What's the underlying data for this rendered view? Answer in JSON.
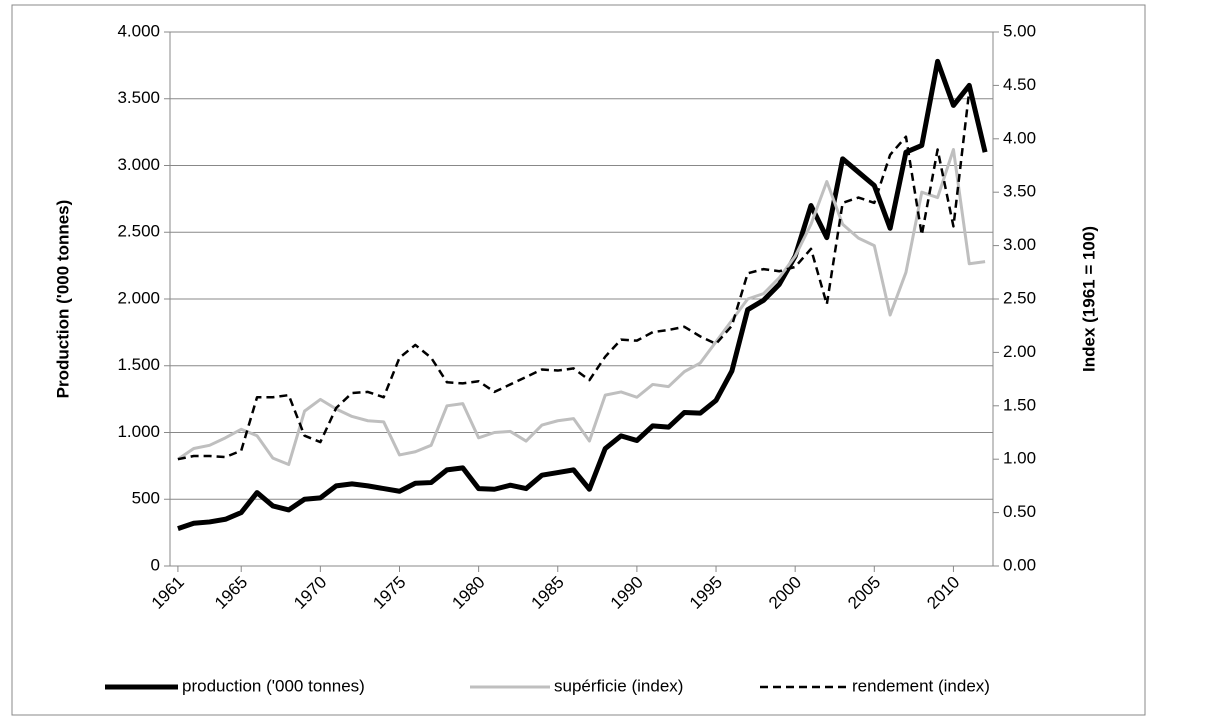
{
  "chart_data": {
    "type": "line",
    "ylabel": "Production ('000 tonnes)",
    "y2label": "Index (1961 = 100)",
    "x": [
      1961,
      1962,
      1963,
      1964,
      1965,
      1966,
      1967,
      1968,
      1969,
      1970,
      1971,
      1972,
      1973,
      1974,
      1975,
      1976,
      1977,
      1978,
      1979,
      1980,
      1981,
      1982,
      1983,
      1984,
      1985,
      1986,
      1987,
      1988,
      1989,
      1990,
      1991,
      1992,
      1993,
      1994,
      1995,
      1996,
      1997,
      1998,
      1999,
      2000,
      2001,
      2002,
      2003,
      2004,
      2005,
      2006,
      2007,
      2008,
      2009,
      2010,
      2011,
      2012
    ],
    "xlim": [
      1960.5,
      2012.5
    ],
    "xticks": [
      1961,
      1965,
      1970,
      1975,
      1980,
      1985,
      1990,
      1995,
      2000,
      2005,
      2010
    ],
    "ylim": [
      0,
      4000
    ],
    "yticks": [
      0,
      500,
      {
        "value": 1000,
        "label": "1.000"
      },
      {
        "value": 1500,
        "label": "1.500"
      },
      {
        "value": 2000,
        "label": "2.000"
      },
      {
        "value": 2500,
        "label": "2.500"
      },
      {
        "value": 3000,
        "label": "3.000"
      },
      {
        "value": 3500,
        "label": "3.500"
      },
      {
        "value": 4000,
        "label": "4.000"
      }
    ],
    "y2lim": [
      0,
      5
    ],
    "y2ticks": [
      {
        "value": 0,
        "label": "0.00"
      },
      {
        "value": 0.5,
        "label": "0.50"
      },
      {
        "value": 1,
        "label": "1.00"
      },
      {
        "value": 1.5,
        "label": "1.50"
      },
      {
        "value": 2,
        "label": "2.00"
      },
      {
        "value": 2.5,
        "label": "2.50"
      },
      {
        "value": 3,
        "label": "3.00"
      },
      {
        "value": 3.5,
        "label": "3.50"
      },
      {
        "value": 4,
        "label": "4.00"
      },
      {
        "value": 4.5,
        "label": "4.50"
      },
      {
        "value": 5,
        "label": "5.00"
      }
    ],
    "grid": true,
    "legend": "bottom",
    "series": [
      {
        "name": "production ('000 tonnes)",
        "color": "#000000",
        "style": "solid",
        "width": 5,
        "values": [
          280,
          320,
          330,
          350,
          400,
          550,
          450,
          420,
          500,
          510,
          600,
          615,
          600,
          580,
          560,
          620,
          625,
          720,
          735,
          580,
          575,
          605,
          580,
          680,
          700,
          720,
          575,
          880,
          975,
          940,
          1050,
          1040,
          1150,
          1145,
          1240,
          1460,
          1920,
          1990,
          2110,
          2320,
          2700,
          2460,
          3050,
          2950,
          2850,
          2530,
          3100,
          3150,
          3780,
          3450,
          3600,
          3100
        ]
      },
      {
        "name": "supérficie (index)",
        "color": "#bfbfbf",
        "style": "solid",
        "width": 3,
        "axis": "y2",
        "values": [
          1.0,
          1.1,
          1.13,
          1.2,
          1.28,
          1.22,
          1.01,
          0.95,
          1.45,
          1.56,
          1.47,
          1.4,
          1.36,
          1.35,
          1.04,
          1.07,
          1.13,
          1.5,
          1.52,
          1.2,
          1.25,
          1.26,
          1.17,
          1.32,
          1.36,
          1.38,
          1.17,
          1.6,
          1.63,
          1.58,
          1.7,
          1.68,
          1.82,
          1.9,
          2.1,
          2.3,
          2.5,
          2.55,
          2.7,
          2.9,
          3.2,
          3.6,
          3.2,
          3.07,
          3.0,
          2.35,
          2.75,
          3.5,
          3.45,
          3.9,
          2.83,
          2.85
        ]
      },
      {
        "name": "rendement (index)",
        "color": "#000000",
        "style": "dashed",
        "width": 2.5,
        "axis": "y2",
        "values": [
          1.0,
          1.03,
          1.03,
          1.02,
          1.08,
          1.58,
          1.58,
          1.6,
          1.22,
          1.16,
          1.48,
          1.62,
          1.63,
          1.58,
          1.95,
          2.07,
          1.95,
          1.72,
          1.71,
          1.73,
          1.63,
          1.7,
          1.77,
          1.84,
          1.83,
          1.85,
          1.74,
          1.96,
          2.12,
          2.11,
          2.19,
          2.21,
          2.24,
          2.15,
          2.08,
          2.25,
          2.74,
          2.78,
          2.76,
          2.8,
          2.97,
          2.45,
          3.4,
          3.45,
          3.4,
          3.85,
          4.02,
          3.1,
          3.9,
          3.18,
          4.45,
          null
        ]
      }
    ]
  }
}
